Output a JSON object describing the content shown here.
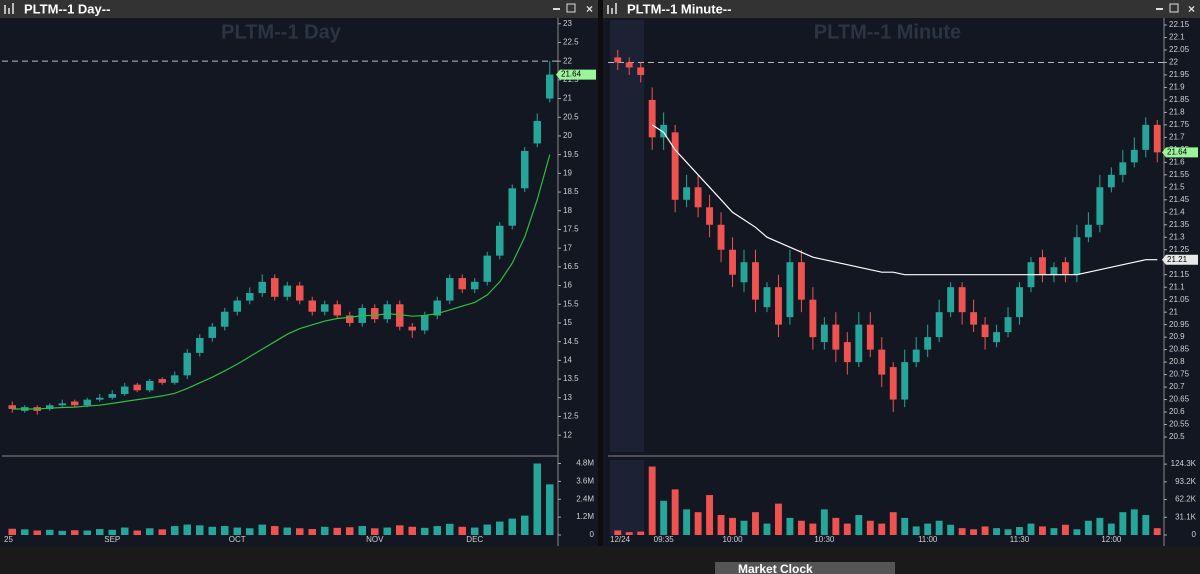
{
  "chart_data": [
    {
      "type": "candlestick",
      "window_title": "PLTM--1 Day--",
      "title": "PLTM--1 Day",
      "categories": [
        "25",
        null,
        null,
        null,
        null,
        null,
        null,
        null,
        "SEP",
        null,
        null,
        null,
        null,
        null,
        null,
        null,
        null,
        null,
        "OCT",
        null,
        null,
        null,
        null,
        null,
        null,
        null,
        null,
        null,
        null,
        "NOV",
        null,
        null,
        null,
        null,
        null,
        null,
        null,
        "DEC",
        null,
        null,
        null,
        null,
        null,
        null
      ],
      "candles": {
        "open": [
          12.8,
          12.65,
          12.75,
          12.7,
          12.8,
          12.9,
          12.8,
          12.95,
          13.0,
          13.1,
          13.35,
          13.2,
          13.5,
          13.4,
          13.6,
          14.2,
          14.6,
          14.9,
          15.3,
          15.6,
          15.8,
          16.2,
          15.7,
          16.0,
          15.6,
          15.3,
          15.5,
          15.2,
          15.0,
          15.4,
          15.1,
          15.5,
          14.9,
          14.8,
          15.2,
          15.6,
          16.2,
          15.9,
          16.1,
          16.8,
          17.6,
          18.6,
          19.8,
          21.0
        ],
        "high": [
          12.9,
          12.8,
          12.8,
          12.85,
          12.95,
          12.95,
          13.0,
          13.1,
          13.2,
          13.4,
          13.4,
          13.5,
          13.55,
          13.7,
          14.3,
          14.7,
          15.0,
          15.4,
          15.7,
          15.95,
          16.3,
          16.3,
          16.1,
          16.1,
          15.7,
          15.6,
          15.6,
          15.3,
          15.5,
          15.5,
          15.6,
          15.6,
          15.0,
          15.3,
          15.7,
          16.3,
          16.3,
          16.2,
          16.9,
          17.7,
          18.7,
          19.7,
          20.6,
          22.0
        ],
        "low": [
          12.6,
          12.6,
          12.55,
          12.65,
          12.75,
          12.75,
          12.75,
          12.9,
          12.95,
          13.05,
          13.15,
          13.15,
          13.35,
          13.35,
          13.5,
          14.1,
          14.5,
          14.8,
          15.2,
          15.5,
          15.7,
          15.6,
          15.6,
          15.5,
          15.2,
          15.2,
          15.1,
          14.9,
          14.9,
          15.0,
          15.0,
          14.8,
          14.6,
          14.7,
          15.1,
          15.5,
          15.8,
          15.8,
          16.0,
          16.7,
          17.5,
          18.5,
          19.7,
          20.9
        ],
        "close": [
          12.7,
          12.75,
          12.65,
          12.8,
          12.85,
          12.8,
          12.95,
          13.0,
          13.1,
          13.3,
          13.2,
          13.45,
          13.4,
          13.6,
          14.2,
          14.6,
          14.9,
          15.3,
          15.6,
          15.8,
          16.1,
          15.7,
          16.0,
          15.6,
          15.3,
          15.5,
          15.2,
          15.0,
          15.4,
          15.1,
          15.5,
          14.9,
          14.8,
          15.2,
          15.6,
          16.2,
          15.9,
          16.1,
          16.8,
          17.6,
          18.6,
          19.6,
          20.4,
          21.64
        ]
      },
      "up_color": "#26a69a",
      "down_color": "#ef5350",
      "lines": [
        {
          "color": "#2fbf3f",
          "values": [
            12.7,
            12.7,
            12.7,
            12.72,
            12.74,
            12.75,
            12.78,
            12.8,
            12.85,
            12.9,
            12.95,
            13.0,
            13.05,
            13.12,
            13.25,
            13.4,
            13.55,
            13.72,
            13.9,
            14.1,
            14.3,
            14.5,
            14.7,
            14.85,
            14.95,
            15.05,
            15.12,
            15.15,
            15.2,
            15.2,
            15.25,
            15.22,
            15.18,
            15.2,
            15.25,
            15.35,
            15.45,
            15.55,
            15.75,
            16.1,
            16.6,
            17.3,
            18.3,
            19.5
          ]
        }
      ],
      "volume": [
        420000,
        380000,
        300000,
        350000,
        280000,
        320000,
        300000,
        400000,
        350000,
        500000,
        300000,
        450000,
        380000,
        600000,
        700000,
        650000,
        550000,
        600000,
        500000,
        450000,
        700000,
        600000,
        500000,
        450000,
        400000,
        550000,
        480000,
        520000,
        600000,
        450000,
        500000,
        650000,
        550000,
        480000,
        600000,
        750000,
        550000,
        500000,
        700000,
        900000,
        1100000,
        1300000,
        4800000,
        3400000
      ],
      "ylim": [
        11.55,
        23.1
      ],
      "yticks": [
        12,
        12.5,
        13,
        13.5,
        14,
        14.5,
        15,
        15.5,
        16,
        16.5,
        17,
        17.5,
        18,
        18.5,
        19,
        19.5,
        20,
        20.5,
        21,
        21.5,
        22,
        22.5,
        23
      ],
      "vlim": [
        0,
        4900000
      ],
      "vticks": [
        {
          "value": 4800000,
          "label": "4.8M"
        },
        {
          "value": 3600000,
          "label": "3.6M"
        },
        {
          "value": 2400000,
          "label": "2.4M"
        },
        {
          "value": 1200000,
          "label": "1.2M"
        },
        0
      ],
      "reference_line": 22,
      "price_labels": [
        {
          "value": 21.64,
          "color": "#9df59a"
        }
      ]
    },
    {
      "type": "candlestick",
      "window_title": "PLTM--1 Minute--",
      "title": "PLTM--1 Minute",
      "categories": [
        "12/24",
        null,
        null,
        null,
        "09:35",
        null,
        null,
        null,
        null,
        null,
        "10:00",
        null,
        null,
        null,
        null,
        null,
        null,
        null,
        "10:30",
        null,
        null,
        null,
        null,
        null,
        null,
        null,
        null,
        "11:00",
        null,
        null,
        null,
        null,
        null,
        null,
        null,
        "11:30",
        null,
        null,
        null,
        null,
        null,
        null,
        null,
        "12:00",
        null,
        null,
        null,
        null
      ],
      "candles": {
        "open": [
          22.02,
          22.0,
          21.98,
          21.85,
          21.7,
          21.72,
          21.45,
          21.5,
          21.42,
          21.35,
          21.25,
          21.12,
          21.2,
          21.02,
          21.1,
          20.98,
          21.2,
          21.05,
          20.88,
          20.95,
          20.88,
          20.8,
          20.95,
          20.85,
          20.78,
          20.65,
          20.8,
          20.85,
          20.9,
          21.0,
          21.1,
          21.0,
          20.95,
          20.88,
          20.92,
          20.98,
          21.1,
          21.22,
          21.15,
          21.2,
          21.15,
          21.3,
          21.35,
          21.5,
          21.55,
          21.6,
          21.65,
          21.75
        ],
        "high": [
          22.05,
          22.02,
          22.0,
          21.9,
          21.8,
          21.75,
          21.55,
          21.55,
          21.47,
          21.4,
          21.3,
          21.25,
          21.25,
          21.12,
          21.15,
          21.25,
          21.25,
          21.1,
          20.98,
          21.0,
          20.92,
          21.0,
          21.0,
          20.9,
          20.8,
          20.85,
          20.9,
          20.95,
          21.05,
          21.12,
          21.12,
          21.05,
          20.98,
          20.95,
          21.02,
          21.12,
          21.22,
          21.25,
          21.2,
          21.22,
          21.35,
          21.4,
          21.55,
          21.58,
          21.65,
          21.7,
          21.78,
          21.77
        ],
        "low": [
          21.97,
          21.95,
          21.92,
          21.65,
          21.65,
          21.4,
          21.42,
          21.38,
          21.3,
          21.2,
          21.1,
          21.08,
          21.0,
          21.0,
          20.9,
          20.95,
          21.0,
          20.85,
          20.85,
          20.8,
          20.75,
          20.78,
          20.82,
          20.7,
          20.6,
          20.62,
          20.78,
          20.82,
          20.88,
          20.98,
          20.95,
          20.92,
          20.85,
          20.86,
          20.9,
          20.95,
          21.08,
          21.12,
          21.12,
          21.12,
          21.12,
          21.28,
          21.32,
          21.48,
          21.52,
          21.58,
          21.62,
          21.6
        ],
        "close": [
          22.0,
          21.98,
          21.95,
          21.7,
          21.75,
          21.45,
          21.5,
          21.42,
          21.35,
          21.25,
          21.15,
          21.2,
          21.05,
          21.1,
          20.95,
          21.2,
          21.05,
          20.9,
          20.95,
          20.85,
          20.8,
          20.95,
          20.85,
          20.75,
          20.65,
          20.8,
          20.85,
          20.9,
          21.0,
          21.1,
          21.0,
          20.95,
          20.9,
          20.92,
          20.98,
          21.1,
          21.2,
          21.15,
          21.18,
          21.15,
          21.3,
          21.35,
          21.5,
          21.55,
          21.6,
          21.65,
          21.75,
          21.64
        ]
      },
      "up_color": "#26a69a",
      "down_color": "#ef5350",
      "lines": [
        {
          "color": "#ffffff",
          "values": [
            null,
            null,
            null,
            21.75,
            21.72,
            21.65,
            21.6,
            21.55,
            21.5,
            21.45,
            21.4,
            21.37,
            21.34,
            21.3,
            21.28,
            21.26,
            21.24,
            21.22,
            21.21,
            21.2,
            21.19,
            21.18,
            21.17,
            21.16,
            21.16,
            21.15,
            21.15,
            21.15,
            21.15,
            21.15,
            21.15,
            21.15,
            21.15,
            21.15,
            21.15,
            21.15,
            21.15,
            21.15,
            21.15,
            21.15,
            21.15,
            21.16,
            21.17,
            21.18,
            21.19,
            21.2,
            21.21,
            21.21
          ]
        }
      ],
      "volume": [
        8000,
        5000,
        6000,
        120000,
        60000,
        80000,
        45000,
        40000,
        70000,
        35000,
        30000,
        25000,
        40000,
        20000,
        55000,
        30000,
        25000,
        20000,
        45000,
        30000,
        20000,
        35000,
        25000,
        20000,
        40000,
        30000,
        15000,
        20000,
        25000,
        18000,
        12000,
        10000,
        15000,
        12000,
        10000,
        14000,
        20000,
        15000,
        12000,
        18000,
        10000,
        25000,
        30000,
        20000,
        40000,
        45000,
        35000,
        12000
      ],
      "ylim": [
        20.44,
        22.17
      ],
      "yticks": [
        20.5,
        20.55,
        20.6,
        20.65,
        20.7,
        20.75,
        20.8,
        20.85,
        20.9,
        20.95,
        21,
        21.05,
        21.1,
        21.15,
        21.2,
        21.25,
        21.3,
        21.35,
        21.4,
        21.45,
        21.5,
        21.55,
        21.6,
        21.65,
        21.7,
        21.75,
        21.8,
        21.85,
        21.9,
        21.95,
        22,
        22.05,
        22.1,
        22.15
      ],
      "vlim": [
        0,
        128000
      ],
      "vticks": [
        {
          "value": 124300,
          "label": "124.3K"
        },
        {
          "value": 93200,
          "label": "93.2K"
        },
        {
          "value": 62200,
          "label": "62.2K"
        },
        {
          "value": 31100,
          "label": "31.1K"
        },
        0
      ],
      "reference_line": 22,
      "price_labels": [
        {
          "value": 21.64,
          "color": "#9df59a"
        },
        {
          "value": 21.21,
          "color": "#e8e8e8"
        }
      ]
    }
  ],
  "footer": {
    "title": "Market Clock"
  }
}
